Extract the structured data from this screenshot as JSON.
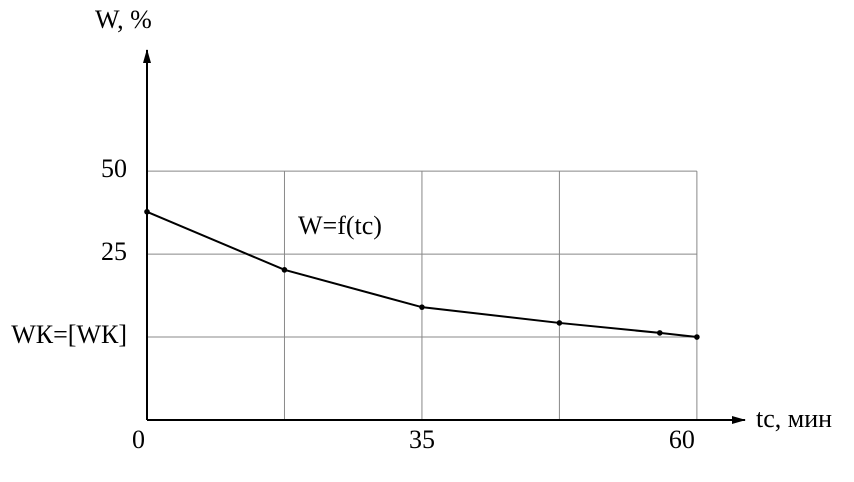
{
  "chart_data": {
    "type": "line",
    "y_label": "W, %",
    "x_label": "tс, мин",
    "annotation": "W=f(tс)",
    "categories": [
      "0",
      null,
      "35",
      null,
      "60"
    ],
    "y_categories": [
      null,
      "WК=[WК]",
      "25",
      "50"
    ],
    "xlim": [
      0,
      4.35
    ],
    "ylim": [
      0,
      4.46
    ],
    "grid": true,
    "series": [
      {
        "color": "#000000",
        "x": [
          0,
          1,
          2,
          3,
          3.73,
          4
        ],
        "values": [
          2.51,
          1.81,
          1.36,
          1.17,
          1.05,
          1.0
        ]
      }
    ]
  }
}
